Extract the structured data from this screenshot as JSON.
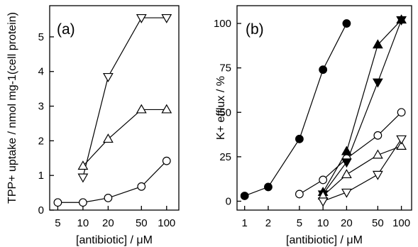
{
  "chart_data": [
    {
      "type": "line",
      "panel_label": "(a)",
      "xlabel": "[antibiotic] / μM",
      "ylabel": "TPP+ uptake / nmol mg-1(cell protein)",
      "xscale": "log",
      "xlim": [
        4,
        140
      ],
      "ylim": [
        0,
        5.9
      ],
      "xticks": [
        5,
        10,
        20,
        50,
        100
      ],
      "xtick_labels": [
        "5",
        "10",
        "20",
        "50",
        "100"
      ],
      "yticks": [
        0,
        1,
        2,
        3,
        4,
        5
      ],
      "ytick_labels": [
        "0",
        "1",
        "2",
        "3",
        "4",
        "5"
      ],
      "grid": false,
      "series": [
        {
          "marker": "circle-open",
          "x": [
            5,
            10,
            20,
            50,
            100
          ],
          "y": [
            0.22,
            0.22,
            0.35,
            0.68,
            1.42
          ]
        },
        {
          "marker": "triangle-up-open",
          "x": [
            10,
            20,
            50,
            100
          ],
          "y": [
            1.27,
            2.05,
            2.9,
            2.9
          ]
        },
        {
          "marker": "triangle-down-open",
          "x": [
            10,
            20,
            50,
            100
          ],
          "y": [
            0.95,
            3.85,
            5.55,
            5.55
          ]
        }
      ]
    },
    {
      "type": "line",
      "panel_label": "(b)",
      "xlabel": "[antibiotic] / μM",
      "ylabel": "K+ efflux / %",
      "xscale": "log",
      "xlim": [
        0.8,
        135
      ],
      "ylim": [
        -5,
        110
      ],
      "xticks": [
        1,
        2,
        5,
        10,
        20,
        50,
        100
      ],
      "xtick_labels": [
        "1",
        "2",
        "5",
        "10",
        "20",
        "50",
        "100"
      ],
      "yticks": [
        0,
        25,
        50,
        75,
        100
      ],
      "ytick_labels": [
        "0",
        "25",
        "50",
        "75",
        "100"
      ],
      "grid": false,
      "series": [
        {
          "marker": "circle-filled",
          "x": [
            1,
            2,
            5,
            10,
            20
          ],
          "y": [
            3,
            8,
            35,
            74,
            100
          ]
        },
        {
          "marker": "circle-open",
          "x": [
            5,
            10,
            20,
            50,
            100
          ],
          "y": [
            4,
            12,
            24,
            37,
            50
          ]
        },
        {
          "marker": "triangle-up-filled",
          "x": [
            10,
            20,
            50,
            100
          ],
          "y": [
            5,
            28,
            88,
            102
          ]
        },
        {
          "marker": "triangle-down-filled",
          "x": [
            10,
            20,
            50,
            100
          ],
          "y": [
            4,
            22,
            67,
            102
          ]
        },
        {
          "marker": "triangle-up-open",
          "x": [
            10,
            20,
            50,
            100
          ],
          "y": [
            3,
            15,
            26,
            31
          ]
        },
        {
          "marker": "triangle-down-open",
          "x": [
            10,
            20,
            50,
            100
          ],
          "y": [
            0,
            5,
            15,
            35
          ]
        }
      ]
    }
  ]
}
